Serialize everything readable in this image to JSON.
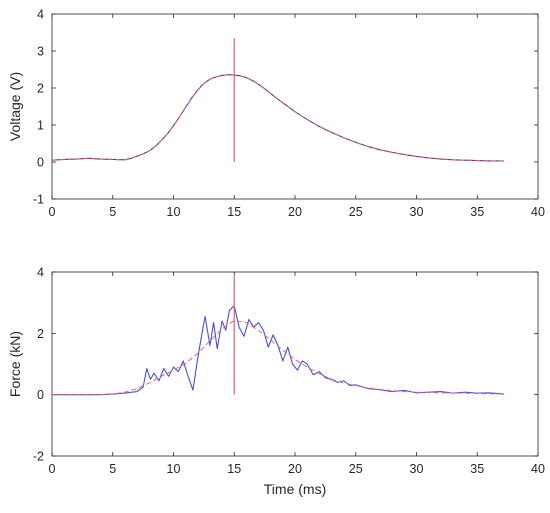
{
  "chart_data": [
    {
      "type": "line",
      "ylabel": "Voltage (V)",
      "xlabel": "",
      "xlim": [
        0,
        40
      ],
      "ylim": [
        -1,
        4
      ],
      "x_ticks": [
        0,
        5,
        10,
        15,
        20,
        25,
        30,
        35,
        40
      ],
      "y_ticks": [
        -1,
        0,
        1,
        2,
        3,
        4
      ],
      "grid": false,
      "marker_line": {
        "x": 15,
        "y_range": [
          0,
          3.35
        ],
        "color": "#e0636a"
      },
      "series": [
        {
          "color": "#3b3f9e",
          "style": "solid",
          "x": [
            0,
            1,
            2,
            3,
            4,
            5,
            6,
            6.5,
            7,
            7.5,
            8,
            8.5,
            9,
            9.5,
            10,
            10.5,
            11,
            11.5,
            12,
            12.5,
            13,
            13.5,
            14,
            14.5,
            15,
            15.5,
            16,
            16.5,
            17,
            17.5,
            18,
            18.5,
            19,
            19.5,
            20,
            21,
            22,
            23,
            24,
            25,
            26,
            27,
            28,
            29,
            30,
            31,
            32,
            33,
            34,
            35,
            36,
            37.2
          ],
          "values": [
            0.05,
            0.07,
            0.08,
            0.1,
            0.08,
            0.07,
            0.06,
            0.1,
            0.16,
            0.22,
            0.3,
            0.42,
            0.58,
            0.76,
            0.98,
            1.22,
            1.48,
            1.73,
            1.95,
            2.12,
            2.24,
            2.3,
            2.34,
            2.36,
            2.35,
            2.33,
            2.28,
            2.2,
            2.1,
            1.98,
            1.85,
            1.72,
            1.6,
            1.48,
            1.36,
            1.15,
            0.96,
            0.8,
            0.66,
            0.53,
            0.42,
            0.33,
            0.26,
            0.2,
            0.15,
            0.11,
            0.08,
            0.06,
            0.05,
            0.04,
            0.03,
            0.03
          ]
        },
        {
          "color": "#e0636a",
          "style": "dashed",
          "x": [
            0,
            1,
            2,
            3,
            4,
            5,
            6,
            6.5,
            7,
            7.5,
            8,
            8.5,
            9,
            9.5,
            10,
            10.5,
            11,
            11.5,
            12,
            12.5,
            13,
            13.5,
            14,
            14.5,
            15,
            15.5,
            16,
            16.5,
            17,
            17.5,
            18,
            18.5,
            19,
            19.5,
            20,
            21,
            22,
            23,
            24,
            25,
            26,
            27,
            28,
            29,
            30,
            31,
            32,
            33,
            34,
            35,
            36,
            37.2
          ],
          "values": [
            0.05,
            0.07,
            0.08,
            0.1,
            0.08,
            0.07,
            0.06,
            0.1,
            0.16,
            0.22,
            0.3,
            0.42,
            0.58,
            0.76,
            0.98,
            1.22,
            1.48,
            1.73,
            1.95,
            2.12,
            2.24,
            2.3,
            2.34,
            2.36,
            2.35,
            2.33,
            2.28,
            2.2,
            2.1,
            1.98,
            1.85,
            1.72,
            1.6,
            1.48,
            1.36,
            1.15,
            0.96,
            0.8,
            0.66,
            0.53,
            0.42,
            0.33,
            0.26,
            0.2,
            0.15,
            0.11,
            0.08,
            0.06,
            0.05,
            0.04,
            0.03,
            0.03
          ]
        }
      ]
    },
    {
      "type": "line",
      "ylabel": "Force (kN)",
      "xlabel": "Time (ms)",
      "xlim": [
        0,
        40
      ],
      "ylim": [
        -2,
        4
      ],
      "x_ticks": [
        0,
        5,
        10,
        15,
        20,
        25,
        30,
        35,
        40
      ],
      "y_ticks": [
        -2,
        0,
        2,
        4
      ],
      "grid": false,
      "marker_line": {
        "x": 15,
        "y_range": [
          0,
          3.9
        ],
        "color": "#e0636a"
      },
      "series": [
        {
          "color": "#4a4fd6",
          "style": "solid",
          "x": [
            0,
            2,
            4,
            5,
            6,
            7,
            7.5,
            7.8,
            8.1,
            8.4,
            8.8,
            9.2,
            9.6,
            10,
            10.4,
            10.8,
            11.2,
            11.6,
            12,
            12.3,
            12.6,
            13,
            13.3,
            13.6,
            14,
            14.3,
            14.6,
            15,
            15.4,
            15.8,
            16.2,
            16.6,
            17,
            17.4,
            17.8,
            18.2,
            18.6,
            19,
            19.4,
            19.8,
            20.2,
            20.6,
            21,
            21.5,
            22,
            22.5,
            23,
            23.5,
            24,
            24.5,
            25,
            26,
            27,
            28,
            29,
            30,
            31,
            32,
            33,
            34,
            35,
            36,
            37.2
          ],
          "values": [
            0,
            0,
            0,
            0.02,
            0.05,
            0.1,
            0.25,
            0.85,
            0.5,
            0.7,
            0.45,
            0.85,
            0.6,
            0.9,
            0.75,
            1.1,
            0.6,
            0.15,
            1.2,
            1.9,
            2.55,
            1.6,
            2.35,
            1.5,
            2.4,
            2.1,
            2.75,
            2.9,
            2.2,
            1.9,
            2.45,
            2.2,
            2.35,
            2.1,
            1.55,
            1.95,
            1.6,
            1.1,
            1.55,
            1.0,
            0.8,
            1.1,
            1.0,
            0.65,
            0.75,
            0.55,
            0.5,
            0.4,
            0.45,
            0.3,
            0.32,
            0.2,
            0.16,
            0.1,
            0.14,
            0.06,
            0.08,
            0.1,
            0.05,
            0.08,
            0.05,
            0.06,
            0.02
          ]
        },
        {
          "color": "#e0636a",
          "style": "dashed",
          "x": [
            0,
            2,
            4,
            5,
            6,
            7,
            8,
            9,
            10,
            11,
            12,
            13,
            14,
            15,
            16,
            17,
            18,
            19,
            20,
            21,
            22,
            23,
            24,
            25,
            26,
            27,
            28,
            29,
            30,
            31,
            32,
            33,
            34,
            35,
            36,
            37.2
          ],
          "values": [
            0,
            0,
            0,
            0.02,
            0.08,
            0.2,
            0.38,
            0.6,
            0.8,
            1.02,
            1.35,
            1.75,
            2.15,
            2.42,
            2.35,
            2.1,
            1.78,
            1.45,
            1.15,
            0.9,
            0.68,
            0.5,
            0.38,
            0.3,
            0.22,
            0.17,
            0.13,
            0.1,
            0.08,
            0.07,
            0.06,
            0.05,
            0.05,
            0.04,
            0.03,
            0.02
          ]
        }
      ]
    }
  ]
}
